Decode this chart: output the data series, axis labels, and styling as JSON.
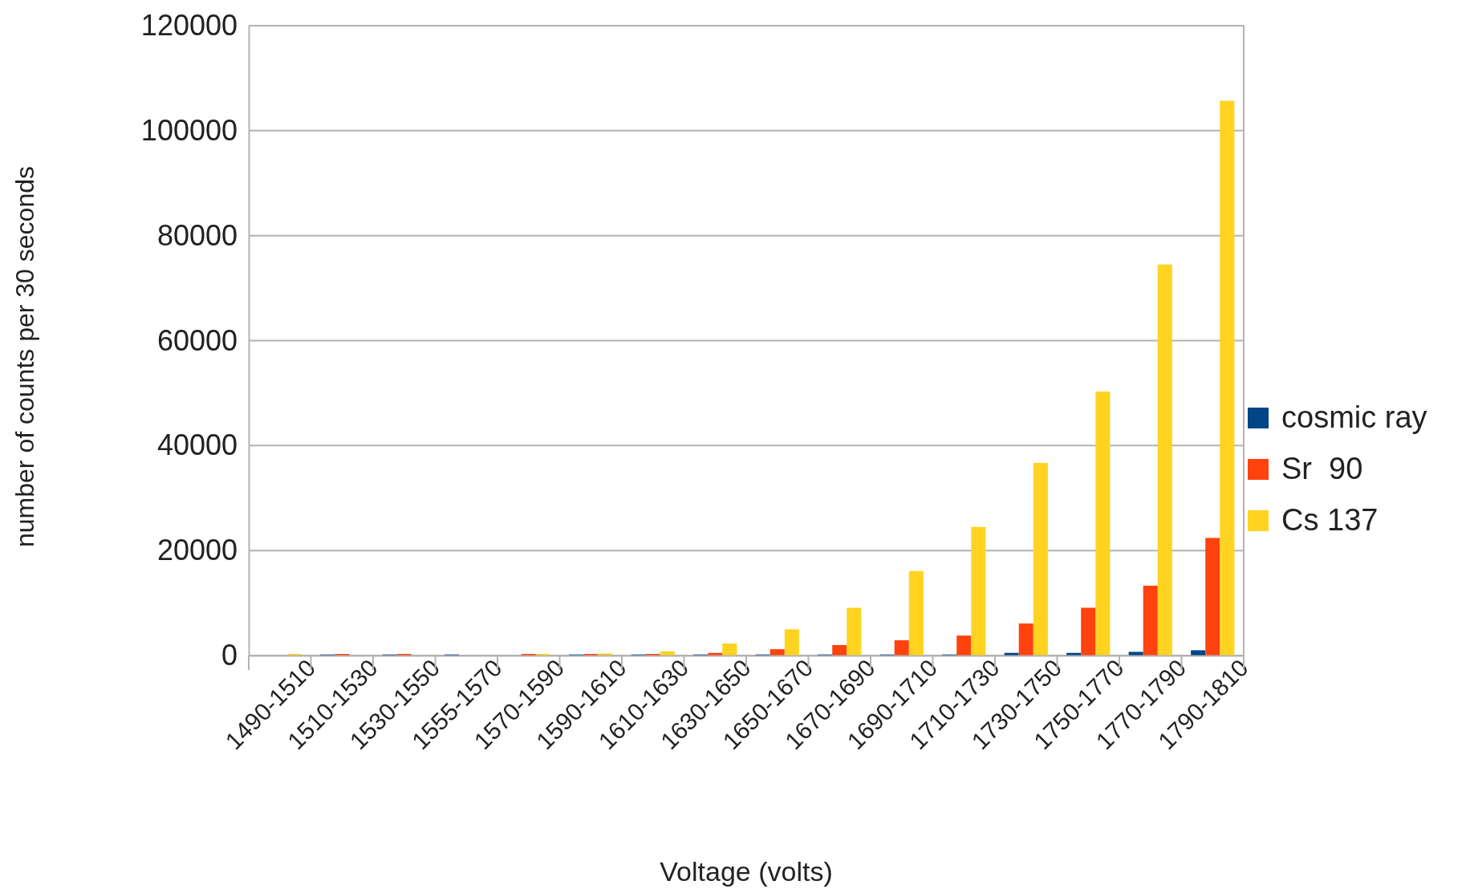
{
  "chart_data": {
    "type": "bar",
    "xlabel": "Voltage (volts)",
    "ylabel": "number of counts per 30 seconds",
    "categories": [
      "1490-1510",
      "1510-1530",
      "1530-1550",
      "1555-1570",
      "1570-1590",
      "1590-1610",
      "1610-1630",
      "1630-1650",
      "1650-1670",
      "1670-1690",
      "1690-1710",
      "1710-1730",
      "1730-1750",
      "1750-1770",
      "1770-1790",
      "1790-1810"
    ],
    "series": [
      {
        "name": "cosmic ray",
        "color": "#004586",
        "values": [
          null,
          200,
          200,
          200,
          null,
          200,
          200,
          200,
          200,
          200,
          200,
          200,
          500,
          500,
          700,
          1000
        ]
      },
      {
        "name": "Sr  90",
        "color": "#ff420e",
        "values": [
          null,
          300,
          300,
          null,
          300,
          300,
          300,
          500,
          1200,
          2000,
          2900,
          3800,
          6100,
          9100,
          13300,
          22400
        ]
      },
      {
        "name": "Cs 137",
        "color": "#ffd320",
        "values": [
          300,
          null,
          null,
          null,
          300,
          400,
          800,
          2300,
          5000,
          9100,
          16100,
          24500,
          36700,
          50300,
          74500,
          105700
        ]
      }
    ],
    "ylim": [
      0,
      120000
    ],
    "yticks": [
      0,
      20000,
      40000,
      60000,
      80000,
      100000,
      120000
    ],
    "grid": "y",
    "legend": "right"
  }
}
